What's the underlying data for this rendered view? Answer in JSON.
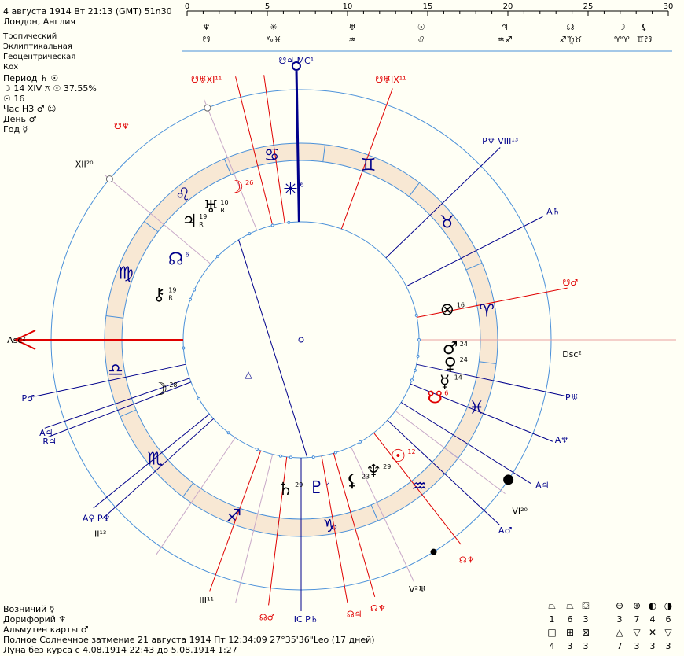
{
  "header": {
    "title": "4 августа 1914  Вт  21:13 (GMT) 51n30",
    "place": "Лондон, Англия",
    "settings": [
      "Тропический",
      "Эклиптикальная",
      "Геоцентрическая",
      "Кох"
    ]
  },
  "stats": {
    "period": "Период ♄ ☉",
    "moon_line": "☽  14 XIV ⚻ ☉ 37.55%",
    "sun_line": "☉  16",
    "hour": "Час НЗ ♂ ☺",
    "day": "День ♂",
    "year": "Год ☿"
  },
  "scale": {
    "ticks": [
      "0",
      "5",
      "10",
      "15",
      "20",
      "25",
      "30"
    ],
    "row1": [
      {
        "pos": 1.2,
        "glyph": "♆"
      },
      {
        "pos": 5.4,
        "glyph": "✳"
      },
      {
        "pos": 10.3,
        "glyph": "♅"
      },
      {
        "pos": 14.6,
        "glyph": "☉"
      },
      {
        "pos": 19.8,
        "glyph": "♃"
      },
      {
        "pos": 23.9,
        "glyph": "☊"
      },
      {
        "pos": 27.1,
        "glyph": "☽"
      },
      {
        "pos": 28.5,
        "glyph": "⚸"
      }
    ],
    "row2": [
      {
        "pos": 1.2,
        "glyph": "☋"
      },
      {
        "pos": 5.4,
        "glyph": "♑♓"
      },
      {
        "pos": 10.3,
        "glyph": "♒"
      },
      {
        "pos": 14.6,
        "glyph": "♌"
      },
      {
        "pos": 19.8,
        "glyph": "♒♐"
      },
      {
        "pos": 23.9,
        "glyph": "♐♍♉"
      },
      {
        "pos": 27.1,
        "glyph": "♈♈"
      },
      {
        "pos": 28.5,
        "glyph": "♊☋"
      }
    ]
  },
  "wheel": {
    "signs": [
      {
        "glyph": "♑",
        "lon": 278
      },
      {
        "glyph": "♐",
        "lon": 248
      },
      {
        "glyph": "♏",
        "lon": 218
      },
      {
        "glyph": "♎",
        "lon": 188
      },
      {
        "glyph": "♍",
        "lon": 158
      },
      {
        "glyph": "♌",
        "lon": 128
      },
      {
        "glyph": "♋",
        "lon": 98
      },
      {
        "glyph": "♊",
        "lon": 68
      },
      {
        "glyph": "♉",
        "lon": 38
      },
      {
        "glyph": "♈",
        "lon": 8
      },
      {
        "glyph": "♓",
        "lon": 338
      },
      {
        "glyph": "♒",
        "lon": 308
      }
    ],
    "planets": [
      {
        "glyph": "☽",
        "deg": "26",
        "angle": 113,
        "r": 212,
        "color": "#e00000"
      },
      {
        "glyph": "♅",
        "deg": "10",
        "sub": "R",
        "angle": 124,
        "r": 205,
        "color": "#000"
      },
      {
        "glyph": "♃",
        "deg": "19",
        "sub": "R",
        "angle": 133,
        "r": 208,
        "color": "#000"
      },
      {
        "glyph": "☊",
        "deg": "6",
        "angle": 147,
        "r": 190,
        "color": "#00008b"
      },
      {
        "glyph": "⚷",
        "deg": "19",
        "sub": "R",
        "angle": 162,
        "r": 190,
        "color": "#000"
      },
      {
        "glyph": "✳",
        "deg": "6",
        "angle": 94,
        "r": 193,
        "color": "#00008b"
      },
      {
        "glyph": "⊗",
        "deg": "16",
        "angle": 12,
        "r": 190,
        "color": "#000"
      },
      {
        "glyph": "♂",
        "deg": "24",
        "angle": -3,
        "r": 190,
        "color": "#000"
      },
      {
        "glyph": "♀",
        "deg": "24",
        "angle": -9,
        "r": 192,
        "color": "#000"
      },
      {
        "glyph": "☿",
        "deg": "14",
        "angle": -16,
        "r": 190,
        "color": "#000"
      },
      {
        "glyph": "☋",
        "deg": "6",
        "angle": -23,
        "r": 185,
        "color": "#e00000"
      },
      {
        "glyph": "☉",
        "deg": "12",
        "angle": -50,
        "r": 192,
        "color": "#e00000"
      },
      {
        "glyph": "♆",
        "deg": "29",
        "angle": -61,
        "r": 190,
        "color": "#000"
      },
      {
        "glyph": "⚸",
        "deg": "23",
        "angle": -70,
        "r": 190,
        "color": "#000"
      },
      {
        "glyph": "♇",
        "deg": "2",
        "angle": -84,
        "r": 188,
        "color": "#00008b"
      },
      {
        "glyph": "♄",
        "deg": "29",
        "angle": -96,
        "r": 190,
        "color": "#000"
      },
      {
        "glyph": "☽",
        "deg": "28",
        "angle": 199,
        "r": 190,
        "color": "#000"
      }
    ],
    "outer_labels": [
      {
        "text": "☋♃ MC¹",
        "angle": 91,
        "r": 355,
        "color": "#00008b"
      },
      {
        "text": "☋♅IX¹¹",
        "angle": 71,
        "r": 350,
        "color": "#e00000"
      },
      {
        "text": "☋♅XI¹¹",
        "angle": 110,
        "r": 352,
        "color": "#e00000"
      },
      {
        "text": "☋♆",
        "angle": 130,
        "r": 355,
        "color": "#e00000"
      },
      {
        "text": "XII²⁰",
        "angle": 141,
        "r": 355,
        "color": "#000"
      },
      {
        "text": "P♆ VIII¹³",
        "angle": 45,
        "r": 358,
        "color": "#00008b"
      },
      {
        "text": "A♄",
        "angle": 27,
        "r": 360,
        "color": "#00008b"
      },
      {
        "text": "☋♂",
        "angle": 12,
        "r": 350,
        "color": "#e00000"
      },
      {
        "text": "Dsc²",
        "angle": -3,
        "r": 345,
        "color": "#000"
      },
      {
        "text": "P♅",
        "angle": -12,
        "r": 352,
        "color": "#00008b"
      },
      {
        "text": "A♆",
        "angle": -21,
        "r": 355,
        "color": "#00008b"
      },
      {
        "text": "A♃",
        "angle": -31,
        "r": 358,
        "color": "#00008b"
      },
      {
        "text": "VI²⁰",
        "angle": -38,
        "r": 353,
        "color": "#000"
      },
      {
        "text": "A♂",
        "angle": -43,
        "r": 355,
        "color": "#00008b"
      },
      {
        "text": "☊♆",
        "angle": -53,
        "r": 350,
        "color": "#e00000"
      },
      {
        "text": "V²♅",
        "angle": -65,
        "r": 350,
        "color": "#000"
      },
      {
        "text": "☊♆",
        "angle": -74,
        "r": 355,
        "color": "#e00000"
      },
      {
        "text": "☊♃",
        "angle": -79,
        "r": 355,
        "color": "#e00000"
      },
      {
        "text": "IC P♄",
        "angle": -89,
        "r": 355,
        "color": "#00008b"
      },
      {
        "text": "☊♂",
        "angle": -97,
        "r": 355,
        "color": "#e00000"
      },
      {
        "text": "III¹¹",
        "angle": -110,
        "r": 352,
        "color": "#000"
      },
      {
        "text": "II¹³",
        "angle": -136,
        "r": 355,
        "color": "#000"
      },
      {
        "text": "A♀ P♆",
        "angle": -139,
        "r": 345,
        "color": "#00008b"
      },
      {
        "text": "R♃",
        "angle": -158,
        "r": 345,
        "color": "#00008b"
      },
      {
        "text": "A♃",
        "angle": -160,
        "r": 345,
        "color": "#00008b"
      },
      {
        "text": "P♂",
        "angle": -168,
        "r": 355,
        "color": "#00008b"
      },
      {
        "text": "Asc²",
        "angle": 180,
        "r": 362,
        "color": "#000"
      }
    ],
    "colors": {
      "circle": "#4a90d9",
      "band": "#f8e8d4",
      "red": "#e00000",
      "navy": "#00008b",
      "light_line": "#c8a8c8"
    }
  },
  "bottom": {
    "charioteer": "Возничий ☿",
    "doryphory": "Дорифорий ♆",
    "almuten": "Альмутен карты ♂",
    "eclipse": "Полное Солнечное затмение 21 августа 1914 Пт 12:34:09 27°35'36\"Leo (17 дней)",
    "void": "Луна без курса с 4.08.1914 22:43 до 5.08.1914 1:27"
  },
  "aspect_counts": {
    "row1_symbols": [
      "⏢",
      "⏢",
      "⛋",
      "⊖",
      "⊕",
      "◐",
      "◑"
    ],
    "row1_values": [
      "1",
      "6",
      "3",
      "3",
      "7",
      "4",
      "6"
    ],
    "row2_symbols": [
      "□",
      "⊞",
      "⊠",
      "△",
      "▽",
      "✕",
      "▽"
    ],
    "row2_values": [
      "4",
      "3",
      "3",
      "7",
      "3",
      "3",
      "3"
    ]
  }
}
